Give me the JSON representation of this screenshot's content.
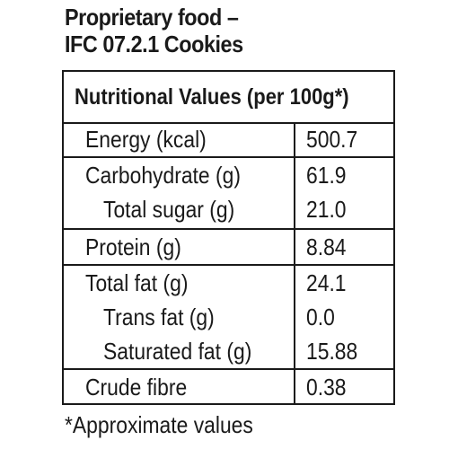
{
  "title": {
    "line1": "Proprietary food –",
    "line2": "IFC 07.2.1 Cookies"
  },
  "table": {
    "header": "Nutritional Values (per 100g*)",
    "rows": [
      {
        "label": "Energy (kcal)",
        "value": "500.7"
      },
      {
        "label": "Carbohydrate (g)",
        "value": "61.9"
      },
      {
        "label": "Total sugar (g)",
        "value": "21.0"
      },
      {
        "label": "Protein (g)",
        "value": "8.84"
      },
      {
        "label": "Total fat (g)",
        "value": "24.1"
      },
      {
        "label": "Trans fat (g)",
        "value": "0.0"
      },
      {
        "label": "Saturated fat (g)",
        "value": "15.88"
      },
      {
        "label": "Crude fibre",
        "value": "0.38"
      }
    ]
  },
  "footnote": "*Approximate values"
}
